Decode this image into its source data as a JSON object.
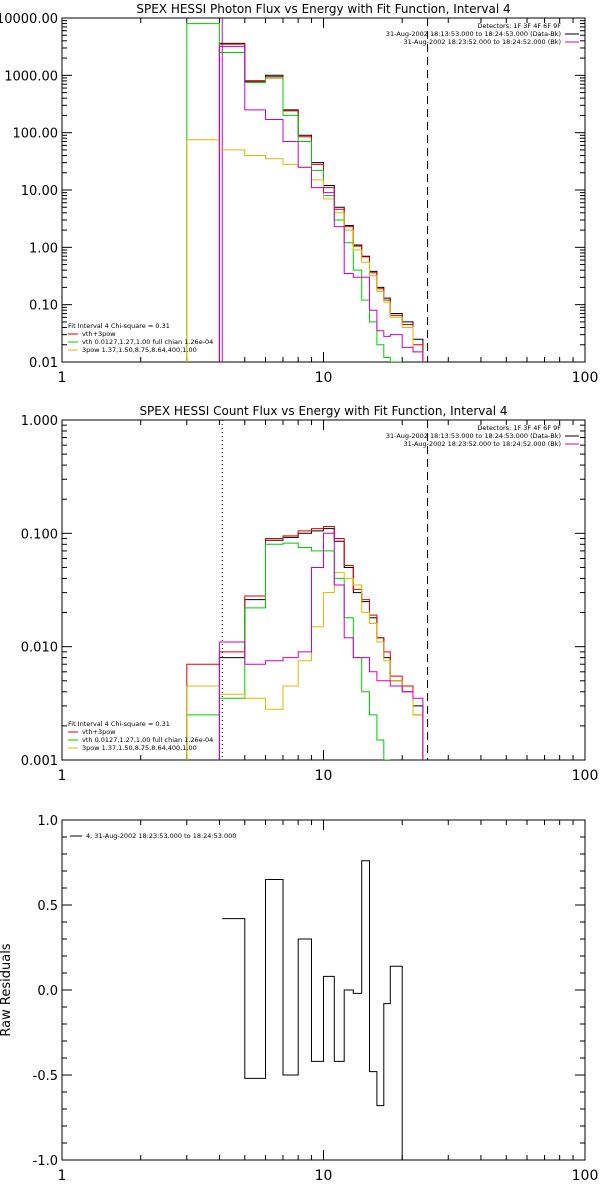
{
  "chart_data": [
    {
      "type": "line",
      "title": "SPEX HESSI Photon Flux vs Energy with Fit Function, Interval 4",
      "xlabel": "",
      "ylabel": "",
      "xscale": "log",
      "yscale": "log",
      "xlim": [
        1,
        100
      ],
      "ylim": [
        0.01,
        10000
      ],
      "x_ticks": [
        {
          "v": 1,
          "t": "1"
        },
        {
          "v": 10,
          "t": "10"
        },
        {
          "v": 100,
          "t": "100"
        }
      ],
      "y_ticks": [
        {
          "v": 0.01,
          "t": "0.01"
        },
        {
          "v": 0.1,
          "t": "0.10"
        },
        {
          "v": 1,
          "t": "1.00"
        },
        {
          "v": 10,
          "t": "10.00"
        },
        {
          "v": 100,
          "t": "100.00"
        },
        {
          "v": 1000,
          "t": "1000.00"
        },
        {
          "v": 10000,
          "t": "10000.00"
        }
      ],
      "vlines": [
        {
          "x": 4.1,
          "style": "solid",
          "color": "#cc00cc"
        },
        {
          "x": 25,
          "style": "dashed",
          "color": "#000000"
        }
      ],
      "info_lines": [
        "Detectors: 1F 3F 4F 6F 9F",
        "31-Aug-2002 18:13:53.000 to 18:24:53.000 (Data-Bk)",
        "31-Aug-2002 18:23:52.000 to 18:24:52.000 (Bk)"
      ],
      "info_colors": [
        "#000000",
        "#000000",
        "#cc00cc"
      ],
      "fit_lines": [
        "Fit Interval 4   Chi-square = 0.31",
        "vth+3pow",
        "vth 0.0127,1.27,1.00  full chian 1.26e-04",
        "3pow 1.37,1.50,8.75,8.64,400,1.00"
      ],
      "fit_colors": [
        "#000000",
        "#dd0000",
        "#00cc00",
        "#ddbb00"
      ],
      "edges": [
        3.0,
        4.0,
        5.0,
        6.0,
        7.0,
        8.0,
        9.0,
        10.0,
        11.0,
        12.0,
        13.0,
        14.0,
        15.0,
        16.0,
        17.0,
        18.0,
        20.0,
        22.0,
        24.0,
        26.0
      ],
      "series": [
        {
          "color": "#000000",
          "values": [
            null,
            3600,
            800,
            1000,
            250,
            90,
            30,
            12,
            5,
            2.4,
            1.1,
            0.7,
            0.38,
            0.2,
            0.13,
            0.07,
            0.05,
            0.025,
            null
          ]
        },
        {
          "color": "#dd0000",
          "values": [
            null,
            3500,
            780,
            950,
            240,
            85,
            28,
            11,
            4.6,
            2.3,
            1.05,
            0.68,
            0.36,
            0.19,
            0.12,
            0.065,
            0.045,
            0.02,
            null
          ]
        },
        {
          "color": "#00cc00",
          "values": [
            8000,
            2500,
            750,
            900,
            200,
            70,
            22,
            8,
            3,
            1.2,
            0.4,
            0.12,
            0.05,
            0.02,
            0.012,
            0.005,
            null,
            null,
            null
          ]
        },
        {
          "color": "#ddbb00",
          "values": [
            75,
            50,
            40,
            35,
            28,
            25,
            15,
            7,
            4,
            2.0,
            0.9,
            0.55,
            0.32,
            0.17,
            0.11,
            0.06,
            0.04,
            0.015,
            null
          ]
        },
        {
          "color": "#cc00cc",
          "values": [
            null,
            3200,
            250,
            170,
            70,
            25,
            11,
            9,
            2.3,
            0.35,
            0.3,
            0.3,
            0.08,
            0.035,
            0.028,
            0.03,
            0.018,
            0.015,
            null
          ]
        }
      ]
    },
    {
      "type": "line",
      "title": "SPEX HESSI Count Flux vs Energy with Fit Function, Interval 4",
      "xlabel": "",
      "ylabel": "",
      "xscale": "log",
      "yscale": "log",
      "xlim": [
        1,
        100
      ],
      "ylim": [
        0.001,
        1.0
      ],
      "x_ticks": [
        {
          "v": 1,
          "t": "1"
        },
        {
          "v": 10,
          "t": "10"
        },
        {
          "v": 100,
          "t": "100"
        }
      ],
      "y_ticks": [
        {
          "v": 0.001,
          "t": "0.001"
        },
        {
          "v": 0.01,
          "t": "0.010"
        },
        {
          "v": 0.1,
          "t": "0.100"
        },
        {
          "v": 1,
          "t": "1.000"
        }
      ],
      "vlines": [
        {
          "x": 4.1,
          "style": "dotted",
          "color": "#000000"
        },
        {
          "x": 25,
          "style": "dashed",
          "color": "#000000"
        }
      ],
      "info_lines": [
        "Detectors: 1F 3F 4F 6F 9F",
        "31-Aug-2002 18:13:53.000 to 18:24:53.000 (Data-Bk)",
        "31-Aug-2002 18:23:52.000 to 18:24:52.000 (Bk)"
      ],
      "info_colors": [
        "#000000",
        "#000000",
        "#cc00cc"
      ],
      "fit_lines": [
        "Fit Interval 4   Chi-square = 0.31",
        "vth+3pow",
        "vth 0.0127,1.27,1.00  full chian 1.26e-04",
        "3pow 1.37,1.50,8.75,8.64,400,1.00"
      ],
      "fit_colors": [
        "#000000",
        "#dd0000",
        "#00cc00",
        "#ddbb00"
      ],
      "edges": [
        3.0,
        4.0,
        5.0,
        6.0,
        7.0,
        8.0,
        9.0,
        10.0,
        11.0,
        12.0,
        13.0,
        14.0,
        15.0,
        16.0,
        17.0,
        18.0,
        20.0,
        22.0,
        24.0,
        26.0
      ],
      "series": [
        {
          "color": "#000000",
          "values": [
            null,
            0.008,
            0.026,
            0.087,
            0.092,
            0.1,
            0.105,
            0.11,
            0.085,
            0.05,
            0.03,
            0.025,
            0.018,
            0.012,
            0.008,
            0.005,
            0.004,
            0.003,
            null
          ]
        },
        {
          "color": "#dd0000",
          "values": [
            0.007,
            0.009,
            0.028,
            0.09,
            0.095,
            0.105,
            0.11,
            0.115,
            0.09,
            0.052,
            0.032,
            0.026,
            0.019,
            0.012,
            0.009,
            0.0055,
            0.0045,
            0.0025,
            null
          ]
        },
        {
          "color": "#00cc00",
          "values": [
            0.0025,
            0.0035,
            0.022,
            0.08,
            0.082,
            0.075,
            0.07,
            0.07,
            0.04,
            0.018,
            0.008,
            0.004,
            0.0025,
            0.0015,
            0.001,
            null,
            null,
            null,
            null
          ]
        },
        {
          "color": "#ddbb00",
          "values": [
            0.0045,
            0.0038,
            0.0035,
            0.0028,
            0.0045,
            0.0075,
            0.015,
            0.03,
            0.045,
            0.04,
            0.035,
            0.02,
            0.016,
            0.011,
            0.0075,
            0.005,
            0.004,
            0.0025,
            null
          ]
        },
        {
          "color": "#cc00cc",
          "values": [
            null,
            0.011,
            0.007,
            0.0075,
            0.008,
            0.009,
            0.05,
            0.1,
            0.035,
            0.012,
            0.008,
            0.008,
            0.006,
            0.005,
            0.005,
            0.0045,
            0.004,
            0.0035,
            null
          ]
        }
      ]
    },
    {
      "type": "line",
      "title": "",
      "xlabel": "",
      "ylabel": "Raw Residuals",
      "xscale": "log",
      "yscale": "linear",
      "xlim": [
        1,
        100
      ],
      "ylim": [
        -1.0,
        1.0
      ],
      "x_ticks": [
        {
          "v": 1,
          "t": "1"
        },
        {
          "v": 10,
          "t": "10"
        },
        {
          "v": 100,
          "t": "100"
        }
      ],
      "y_ticks": [
        {
          "v": -1,
          "t": "-1.0"
        },
        {
          "v": -0.5,
          "t": "-0.5"
        },
        {
          "v": 0,
          "t": "0.0"
        },
        {
          "v": 0.5,
          "t": "0.5"
        },
        {
          "v": 1,
          "t": "1.0"
        }
      ],
      "vlines": [],
      "legend": "top-left",
      "legend_entries": [
        "4, 31-Aug-2002 18:23:53.000 to 18:24:53.000"
      ],
      "edges": [
        4.1,
        5.0,
        6.0,
        7.0,
        8.0,
        9.0,
        10.0,
        11.0,
        12.0,
        13.0,
        14.0,
        15.0,
        16.0,
        17.0,
        18.0,
        20.0,
        22.0,
        24.0,
        26.0
      ],
      "series": [
        {
          "color": "#000000",
          "values": [
            0.42,
            -0.52,
            0.65,
            -0.5,
            0.3,
            -0.42,
            0.08,
            -0.42,
            0.0,
            -0.02,
            0.76,
            -0.48,
            -0.68,
            -0.08,
            0.14,
            null,
            null,
            null
          ]
        }
      ]
    }
  ]
}
